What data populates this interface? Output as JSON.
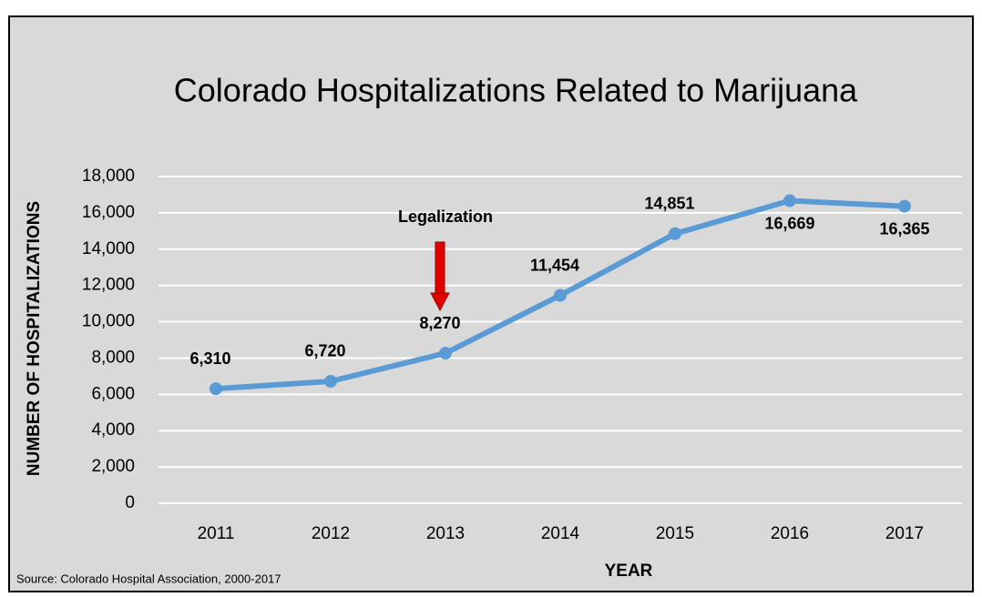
{
  "chart_data": {
    "type": "line",
    "title": "Colorado Hospitalizations Related to Marijuana",
    "x_label": "YEAR",
    "y_label": "NUMBER OF HOSPITALIZATIONS",
    "source": "Source: Colorado Hospital Association, 2000-2017",
    "annotation": "Legalization",
    "categories": [
      "2011",
      "2012",
      "2013",
      "2014",
      "2015",
      "2016",
      "2017"
    ],
    "values": [
      6310,
      6720,
      8270,
      11454,
      14851,
      16669,
      16365
    ],
    "value_labels": [
      "6,310",
      "6,720",
      "8,270",
      "11,454",
      "14,851",
      "16,669",
      "16,365"
    ],
    "color": "#5b9bd5",
    "ylim": [
      0,
      18000
    ],
    "yticks": [
      0,
      {
        "value": 2000,
        "label": "2,000"
      },
      {
        "value": 4000,
        "label": "4,000"
      },
      {
        "value": 6000,
        "label": "6,000"
      },
      {
        "value": 8000,
        "label": "8,000"
      },
      {
        "value": 10000,
        "label": "10,000"
      },
      {
        "value": 12000,
        "label": "12,000"
      },
      {
        "value": 14000,
        "label": "14,000"
      },
      {
        "value": 16000,
        "label": "16,000"
      },
      {
        "value": 18000,
        "label": "18,000"
      }
    ],
    "grid": true
  }
}
